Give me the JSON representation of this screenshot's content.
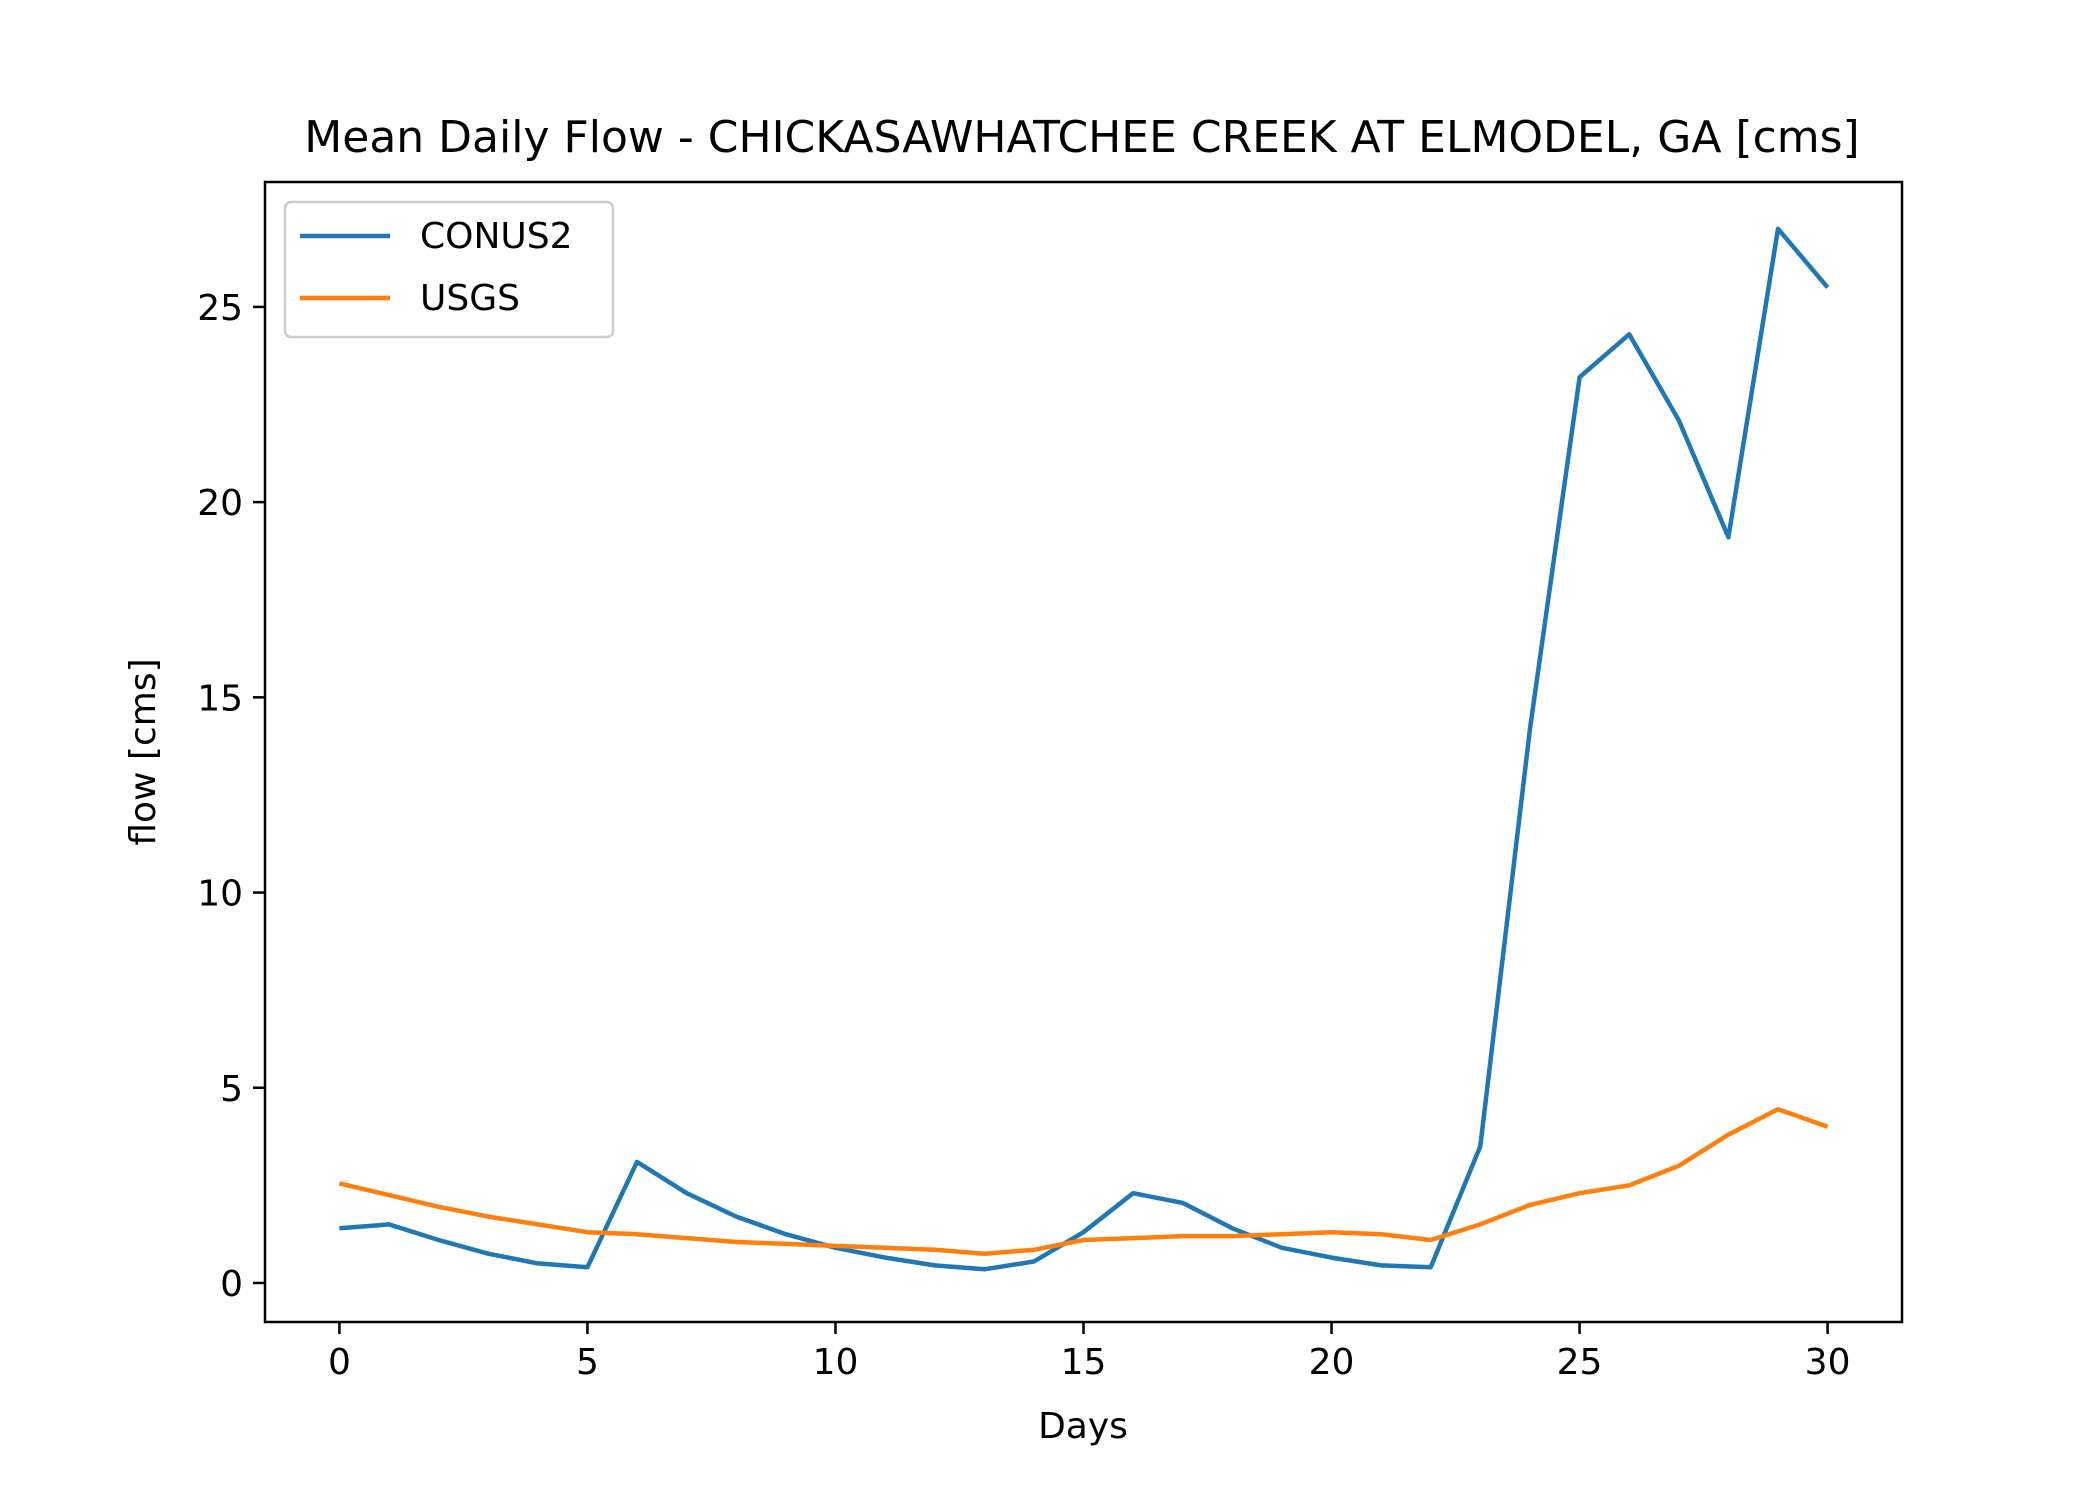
{
  "chart_data": {
    "type": "line",
    "title": "Mean Daily Flow - CHICKASAWHATCHEE CREEK AT ELMODEL, GA [cms]",
    "xlabel": "Days",
    "ylabel": "flow [cms]",
    "xlim": [
      -1.5,
      31.5
    ],
    "ylim": [
      -1,
      28.2
    ],
    "xticks": [
      0,
      5,
      10,
      15,
      20,
      25,
      30
    ],
    "yticks": [
      0,
      5,
      10,
      15,
      20,
      25
    ],
    "grid": false,
    "legend_position": "top-left",
    "x": [
      0,
      1,
      2,
      3,
      4,
      5,
      6,
      7,
      8,
      9,
      10,
      11,
      12,
      13,
      14,
      15,
      16,
      17,
      18,
      19,
      20,
      21,
      22,
      23,
      24,
      25,
      26,
      27,
      28,
      29,
      30
    ],
    "series": [
      {
        "name": "CONUS2",
        "color": "#1f77b4",
        "values": [
          1.4,
          1.5,
          1.1,
          0.75,
          0.5,
          0.4,
          3.1,
          2.3,
          1.7,
          1.25,
          0.9,
          0.65,
          0.45,
          0.35,
          0.55,
          1.3,
          2.3,
          2.05,
          1.4,
          0.9,
          0.65,
          0.45,
          0.4,
          3.5,
          14.2,
          23.2,
          24.3,
          22.1,
          19.1,
          27.0,
          25.5
        ]
      },
      {
        "name": "USGS",
        "color": "#ff7f0e",
        "values": [
          2.55,
          2.25,
          1.95,
          1.7,
          1.5,
          1.3,
          1.25,
          1.15,
          1.05,
          1.0,
          0.95,
          0.9,
          0.85,
          0.75,
          0.85,
          1.1,
          1.15,
          1.2,
          1.2,
          1.25,
          1.3,
          1.25,
          1.1,
          1.5,
          2.0,
          2.3,
          2.5,
          3.0,
          3.8,
          4.45,
          4.0
        ]
      }
    ]
  }
}
